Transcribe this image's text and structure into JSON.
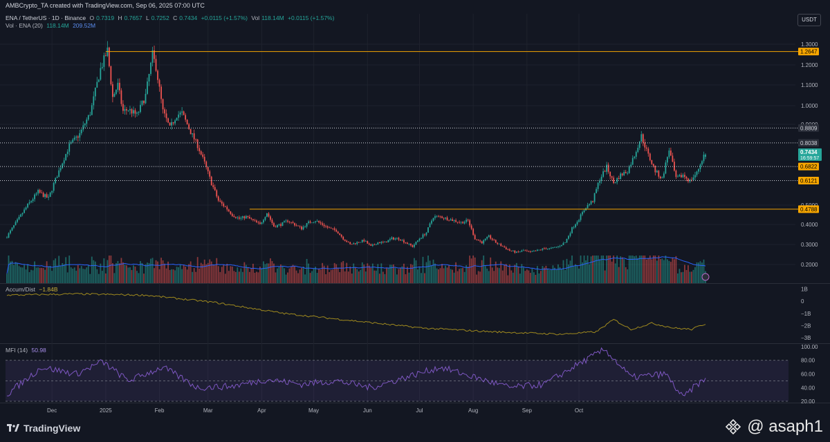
{
  "header": {
    "attribution": "AMBCrypto_TA created with TradingView.com, Sep 06, 2025 07:00 UTC"
  },
  "legend": {
    "symbol": "ENA / TetherUS · 1D · Binance",
    "open_label": "O",
    "open": "0.7319",
    "high_label": "H",
    "high": "0.7657",
    "low_label": "L",
    "low": "0.7252",
    "close_label": "C",
    "close": "0.7434",
    "change": "+0.0115 (+1.57%)",
    "vol_label": "Vol",
    "vol": "118.14M",
    "vol_change": "+0.0115 (+1.57%)",
    "volma_label": "Vol · ENA (20)",
    "volma_v1": "118.14M",
    "volma_v2": "209.52M",
    "ad_label": "Accum/Dist",
    "ad_value": "−1.84B",
    "mfi_label": "MFI (14)",
    "mfi_value": "50.98"
  },
  "currency": "USDT",
  "brand": {
    "name": "TradingView"
  },
  "watermark": {
    "text": "@ asaph1"
  },
  "colors": {
    "background": "#131722",
    "up": "#26a69a",
    "down": "#ef5350",
    "level": "#f7a600",
    "dotted": "#d1d4dc",
    "volma": "#2962ff",
    "ad": "#a08a1e",
    "mfi": "#7e57c2"
  },
  "chart_data": [
    {
      "type": "candlestick",
      "title": "ENA / TetherUS · 1D · Binance",
      "x_ticks": [
        "Dec",
        "2025",
        "Feb",
        "Mar",
        "Apr",
        "May",
        "Jun",
        "Jul",
        "Aug",
        "Sep",
        "Oct"
      ],
      "y_ticks": [
        "1.3000",
        "1.2000",
        "1.1000",
        "1.0000",
        "0.9000",
        "0.5000",
        "0.4000",
        "0.3000",
        "0.2000"
      ],
      "ylim": [
        0.16,
        1.38
      ],
      "anchors": [
        {
          "i": 0,
          "p": 0.34
        },
        {
          "i": 6,
          "p": 0.42
        },
        {
          "i": 12,
          "p": 0.5
        },
        {
          "i": 18,
          "p": 0.56
        },
        {
          "i": 24,
          "p": 0.53
        },
        {
          "i": 30,
          "p": 0.66
        },
        {
          "i": 36,
          "p": 0.79
        },
        {
          "i": 42,
          "p": 0.85
        },
        {
          "i": 48,
          "p": 0.96
        },
        {
          "i": 54,
          "p": 1.18
        },
        {
          "i": 58,
          "p": 1.27
        },
        {
          "i": 61,
          "p": 1.04
        },
        {
          "i": 64,
          "p": 1.1
        },
        {
          "i": 67,
          "p": 0.97
        },
        {
          "i": 70,
          "p": 0.98
        },
        {
          "i": 75,
          "p": 0.95
        },
        {
          "i": 80,
          "p": 1.05
        },
        {
          "i": 84,
          "p": 1.25
        },
        {
          "i": 86,
          "p": 1.19
        },
        {
          "i": 90,
          "p": 0.97
        },
        {
          "i": 94,
          "p": 0.88
        },
        {
          "i": 98,
          "p": 0.95
        },
        {
          "i": 101,
          "p": 0.96
        },
        {
          "i": 106,
          "p": 0.86
        },
        {
          "i": 110,
          "p": 0.79
        },
        {
          "i": 114,
          "p": 0.7
        },
        {
          "i": 118,
          "p": 0.6
        },
        {
          "i": 122,
          "p": 0.52
        },
        {
          "i": 126,
          "p": 0.49
        },
        {
          "i": 130,
          "p": 0.45
        },
        {
          "i": 134,
          "p": 0.43
        },
        {
          "i": 138,
          "p": 0.44
        },
        {
          "i": 142,
          "p": 0.42
        },
        {
          "i": 146,
          "p": 0.4
        },
        {
          "i": 150,
          "p": 0.46
        },
        {
          "i": 154,
          "p": 0.39
        },
        {
          "i": 158,
          "p": 0.4
        },
        {
          "i": 162,
          "p": 0.42
        },
        {
          "i": 166,
          "p": 0.4
        },
        {
          "i": 170,
          "p": 0.38
        },
        {
          "i": 174,
          "p": 0.41
        },
        {
          "i": 178,
          "p": 0.42
        },
        {
          "i": 182,
          "p": 0.4
        },
        {
          "i": 186,
          "p": 0.38
        },
        {
          "i": 190,
          "p": 0.37
        },
        {
          "i": 194,
          "p": 0.33
        },
        {
          "i": 198,
          "p": 0.3
        },
        {
          "i": 202,
          "p": 0.31
        },
        {
          "i": 206,
          "p": 0.32
        },
        {
          "i": 210,
          "p": 0.29
        },
        {
          "i": 214,
          "p": 0.31
        },
        {
          "i": 218,
          "p": 0.31
        },
        {
          "i": 222,
          "p": 0.33
        },
        {
          "i": 226,
          "p": 0.33
        },
        {
          "i": 230,
          "p": 0.31
        },
        {
          "i": 234,
          "p": 0.29
        },
        {
          "i": 238,
          "p": 0.33
        },
        {
          "i": 242,
          "p": 0.36
        },
        {
          "i": 246,
          "p": 0.44
        },
        {
          "i": 250,
          "p": 0.44
        },
        {
          "i": 254,
          "p": 0.43
        },
        {
          "i": 258,
          "p": 0.42
        },
        {
          "i": 262,
          "p": 0.41
        },
        {
          "i": 266,
          "p": 0.42
        },
        {
          "i": 270,
          "p": 0.33
        },
        {
          "i": 274,
          "p": 0.31
        },
        {
          "i": 278,
          "p": 0.34
        },
        {
          "i": 282,
          "p": 0.31
        },
        {
          "i": 286,
          "p": 0.29
        },
        {
          "i": 290,
          "p": 0.27
        },
        {
          "i": 294,
          "p": 0.26
        },
        {
          "i": 298,
          "p": 0.27
        },
        {
          "i": 302,
          "p": 0.26
        },
        {
          "i": 306,
          "p": 0.27
        },
        {
          "i": 310,
          "p": 0.28
        },
        {
          "i": 314,
          "p": 0.28
        },
        {
          "i": 318,
          "p": 0.29
        },
        {
          "i": 322,
          "p": 0.31
        },
        {
          "i": 326,
          "p": 0.38
        },
        {
          "i": 330,
          "p": 0.43
        },
        {
          "i": 334,
          "p": 0.49
        },
        {
          "i": 338,
          "p": 0.52
        },
        {
          "i": 342,
          "p": 0.62
        },
        {
          "i": 346,
          "p": 0.68
        },
        {
          "i": 350,
          "p": 0.6
        },
        {
          "i": 354,
          "p": 0.64
        },
        {
          "i": 358,
          "p": 0.66
        },
        {
          "i": 362,
          "p": 0.74
        },
        {
          "i": 366,
          "p": 0.84
        },
        {
          "i": 370,
          "p": 0.74
        },
        {
          "i": 374,
          "p": 0.66
        },
        {
          "i": 378,
          "p": 0.62
        },
        {
          "i": 382,
          "p": 0.77
        },
        {
          "i": 386,
          "p": 0.62
        },
        {
          "i": 390,
          "p": 0.64
        },
        {
          "i": 394,
          "p": 0.61
        },
        {
          "i": 398,
          "p": 0.65
        },
        {
          "i": 402,
          "p": 0.74
        },
        {
          "i": 403,
          "p": 0.7434
        }
      ],
      "levels": [
        {
          "price": 1.2647,
          "label": "1.2647",
          "style": "solid"
        },
        {
          "price": 0.8809,
          "label": "0.8809",
          "style": "dotted"
        },
        {
          "price": 0.8038,
          "label": "0.8038",
          "style": "dotted"
        },
        {
          "price": 0.6822,
          "label": "0.6822",
          "style": "dotted"
        },
        {
          "price": 0.6121,
          "label": "0.6121",
          "style": "dotted"
        },
        {
          "price": 0.4788,
          "label": "0.4788",
          "style": "solid"
        }
      ],
      "last_price": {
        "label": "0.7434",
        "countdown": "16:59:57"
      }
    },
    {
      "type": "area",
      "name": "Accum/Dist",
      "y_ticks": [
        "1B",
        "0",
        "−1B",
        "−2B",
        "−3B"
      ],
      "ylim": [
        -3.1,
        1.2
      ],
      "anchors": [
        {
          "i": 0,
          "v": 0.5
        },
        {
          "i": 40,
          "v": 0.6
        },
        {
          "i": 80,
          "v": 0.5
        },
        {
          "i": 120,
          "v": -0.1
        },
        {
          "i": 160,
          "v": -1.0
        },
        {
          "i": 200,
          "v": -1.6
        },
        {
          "i": 240,
          "v": -2.2
        },
        {
          "i": 280,
          "v": -2.5
        },
        {
          "i": 320,
          "v": -2.7
        },
        {
          "i": 340,
          "v": -2.5
        },
        {
          "i": 350,
          "v": -1.5
        },
        {
          "i": 360,
          "v": -2.3
        },
        {
          "i": 372,
          "v": -1.8
        },
        {
          "i": 385,
          "v": -2.2
        },
        {
          "i": 395,
          "v": -2.3
        },
        {
          "i": 403,
          "v": -1.84
        }
      ]
    },
    {
      "type": "line",
      "name": "MFI (14)",
      "y_ticks": [
        "100.00",
        "80.00",
        "60.00",
        "40.00",
        "20.00"
      ],
      "ylim": [
        18,
        104
      ],
      "band": [
        20,
        80
      ],
      "anchors": [
        {
          "i": 0,
          "v": 30
        },
        {
          "i": 20,
          "v": 70
        },
        {
          "i": 40,
          "v": 60
        },
        {
          "i": 55,
          "v": 78
        },
        {
          "i": 70,
          "v": 50
        },
        {
          "i": 90,
          "v": 70
        },
        {
          "i": 110,
          "v": 40
        },
        {
          "i": 130,
          "v": 42
        },
        {
          "i": 150,
          "v": 52
        },
        {
          "i": 170,
          "v": 45
        },
        {
          "i": 190,
          "v": 50
        },
        {
          "i": 210,
          "v": 40
        },
        {
          "i": 230,
          "v": 55
        },
        {
          "i": 250,
          "v": 70
        },
        {
          "i": 270,
          "v": 55
        },
        {
          "i": 290,
          "v": 40
        },
        {
          "i": 310,
          "v": 45
        },
        {
          "i": 330,
          "v": 75
        },
        {
          "i": 345,
          "v": 96
        },
        {
          "i": 360,
          "v": 55
        },
        {
          "i": 380,
          "v": 60
        },
        {
          "i": 390,
          "v": 25
        },
        {
          "i": 398,
          "v": 45
        },
        {
          "i": 403,
          "v": 50.98
        }
      ]
    }
  ]
}
